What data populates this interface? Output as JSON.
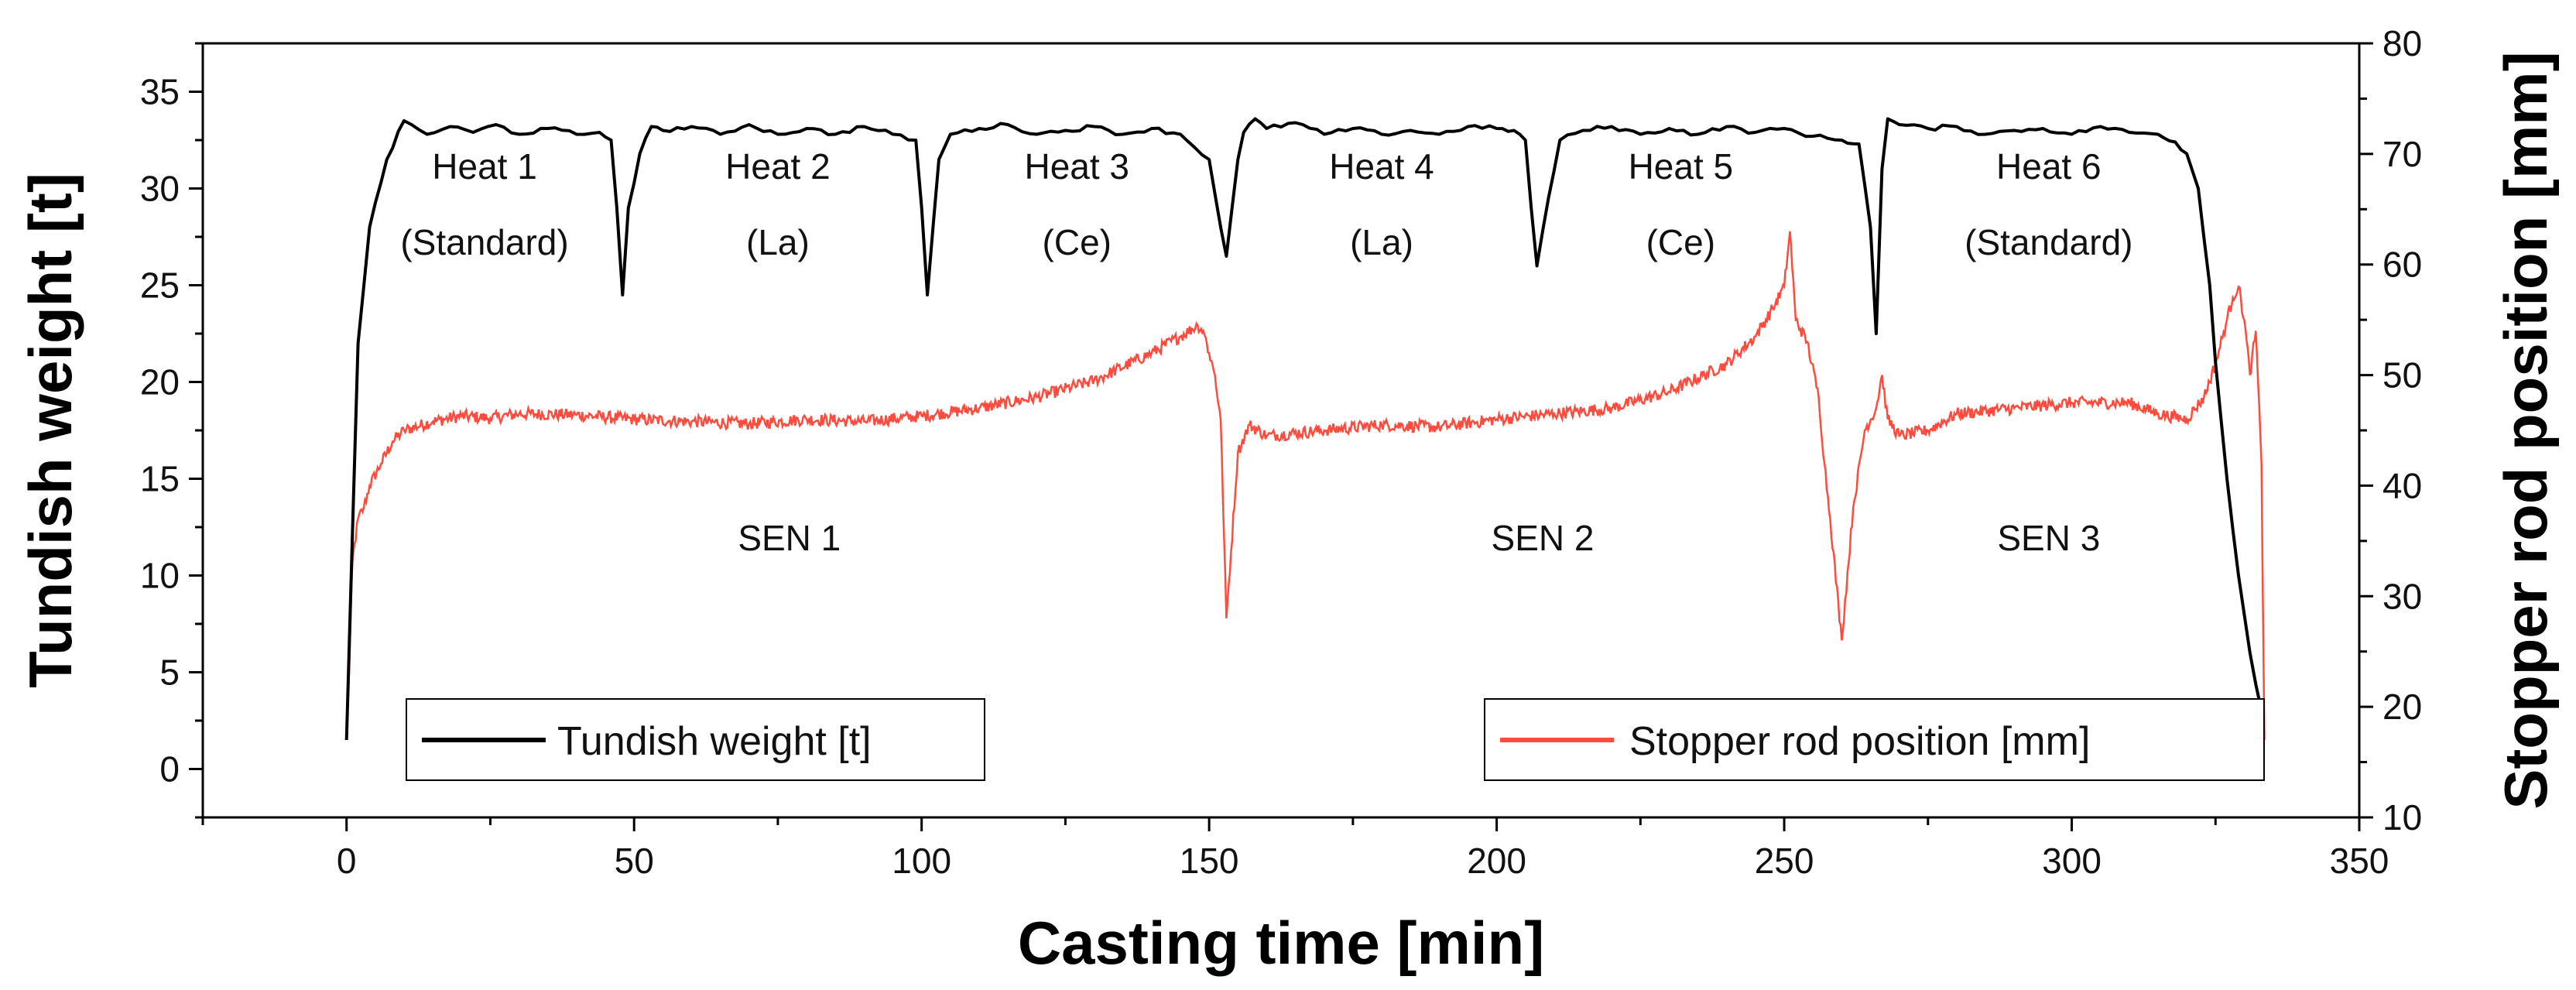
{
  "chart_data": {
    "type": "line",
    "xlabel": "Casting time [min]",
    "ylabel": "Tundish weight [t]",
    "y2label": "Stopper rod position [mm]",
    "xlim": [
      -25,
      350
    ],
    "ylim": [
      -2.5,
      37.5
    ],
    "y2lim": [
      10,
      80
    ],
    "xticks": [
      0,
      50,
      100,
      150,
      200,
      250,
      300,
      350
    ],
    "yticks": [
      0,
      5,
      10,
      15,
      20,
      25,
      30,
      35
    ],
    "y2ticks": [
      10,
      20,
      30,
      40,
      50,
      60,
      70,
      80
    ],
    "grid": false,
    "series": [
      {
        "name": "Tundish weight [t]",
        "axis": "left",
        "color": "#000000",
        "x": [
          0,
          1,
          2,
          4,
          7,
          10,
          14,
          18,
          22,
          26,
          30,
          35,
          40,
          44,
          46,
          47,
          48,
          49,
          51,
          53,
          55,
          60,
          65,
          70,
          75,
          80,
          85,
          90,
          95,
          99,
          100,
          101,
          103,
          105,
          110,
          115,
          120,
          125,
          130,
          135,
          140,
          145,
          150,
          152,
          153,
          155,
          156,
          158,
          160,
          165,
          170,
          175,
          180,
          185,
          190,
          195,
          200,
          203,
          205,
          206,
          207,
          209,
          211,
          215,
          220,
          225,
          230,
          235,
          240,
          245,
          250,
          255,
          260,
          263,
          265,
          266,
          267,
          268,
          270,
          275,
          280,
          285,
          290,
          295,
          300,
          305,
          310,
          315,
          318,
          320,
          322,
          324,
          325,
          327,
          329,
          331,
          333
        ],
        "values": [
          1.5,
          12,
          22,
          28,
          31.5,
          33.5,
          32.8,
          33.2,
          32.9,
          33.3,
          32.8,
          33.1,
          32.8,
          32.9,
          32.5,
          29,
          24.5,
          29,
          31.8,
          33.2,
          33,
          33.2,
          32.8,
          33.3,
          32.8,
          33.1,
          32.8,
          33.2,
          32.8,
          32.5,
          29,
          24.5,
          31.5,
          32.8,
          33.1,
          33.3,
          32.8,
          33,
          33.2,
          32.8,
          33.1,
          32.8,
          31.5,
          28,
          26.5,
          31.5,
          32.9,
          33.6,
          33.1,
          33.4,
          32.8,
          33.1,
          32.8,
          33,
          32.8,
          33.2,
          33.1,
          33,
          32.5,
          29,
          26,
          29.5,
          32.5,
          33,
          33.2,
          32.8,
          33.1,
          32.8,
          33.2,
          32.9,
          33.1,
          32.7,
          32.5,
          32.3,
          28,
          22.5,
          31,
          33.6,
          33.3,
          33.1,
          33.2,
          32.8,
          33,
          33.1,
          32.8,
          33.2,
          32.9,
          32.8,
          32.4,
          31.8,
          30,
          25,
          21,
          15,
          10,
          6,
          3
        ]
      },
      {
        "name": "Stopper rod position [mm]",
        "axis": "right",
        "color": "#ff4b3d",
        "x": [
          0,
          0.5,
          1,
          2,
          3,
          4,
          6,
          8,
          10,
          15,
          20,
          25,
          30,
          40,
          50,
          60,
          70,
          80,
          90,
          100,
          110,
          120,
          130,
          140,
          145,
          148,
          149,
          150,
          151,
          152,
          153,
          155,
          157,
          160,
          170,
          180,
          190,
          200,
          210,
          220,
          230,
          240,
          245,
          248,
          250,
          251,
          252,
          254,
          256,
          257,
          258,
          260,
          262,
          264,
          266,
          267,
          268,
          270,
          275,
          280,
          290,
          300,
          310,
          315,
          320,
          323,
          325,
          327,
          328,
          329,
          330,
          331,
          332,
          333,
          333.5
        ],
        "values": [
          17,
          24,
          33,
          37,
          38,
          40,
          42,
          44,
          45,
          45.8,
          46.3,
          46.1,
          46.5,
          46.4,
          46,
          45.8,
          45.6,
          46,
          45.8,
          46.3,
          47,
          48,
          49.5,
          52,
          53.5,
          54.5,
          54,
          52,
          50,
          46,
          28,
          43,
          45.5,
          44.5,
          45,
          45.5,
          45.3,
          46,
          46.5,
          47,
          48.5,
          51,
          53.5,
          56,
          58,
          63,
          55,
          53,
          48,
          42,
          37,
          26,
          38,
          45,
          47,
          50,
          46,
          44.5,
          45,
          46.5,
          47,
          47.5,
          47.5,
          46.5,
          46,
          48,
          51,
          55,
          57,
          58,
          55,
          50,
          54,
          42,
          17
        ]
      }
    ],
    "annotations": [
      {
        "line1": "Heat 1",
        "line2": "(Standard)",
        "x": 24,
        "y_t": 30.5
      },
      {
        "line1": "Heat 2",
        "line2": "(La)",
        "x": 75,
        "y_t": 30.5
      },
      {
        "line1": "Heat 3",
        "line2": "(Ce)",
        "x": 127,
        "y_t": 30.5
      },
      {
        "line1": "Heat 4",
        "line2": "(La)",
        "x": 180,
        "y_t": 30.5
      },
      {
        "line1": "Heat 5",
        "line2": "(Ce)",
        "x": 232,
        "y_t": 30.5
      },
      {
        "line1": "Heat 6",
        "line2": "(Standard)",
        "x": 296,
        "y_t": 30.5
      },
      {
        "line1": "SEN 1",
        "line2": "",
        "x": 77,
        "y_t": 11.3
      },
      {
        "line1": "SEN 2",
        "line2": "",
        "x": 208,
        "y_t": 11.3
      },
      {
        "line1": "SEN 3",
        "line2": "",
        "x": 296,
        "y_t": 11.3
      }
    ],
    "legend": [
      {
        "label": "Tundish weight [t]",
        "position": "bottom-left"
      },
      {
        "label": "Stopper rod position [mm]",
        "position": "bottom-right"
      }
    ]
  }
}
